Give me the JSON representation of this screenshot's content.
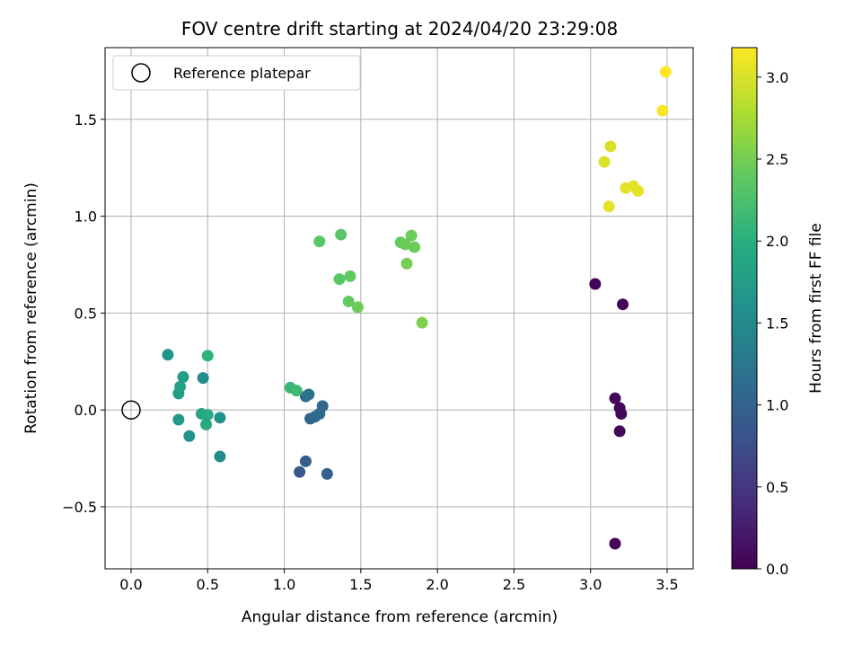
{
  "chart_data": {
    "type": "scatter",
    "title": "FOV centre drift starting at 2024/04/20 23:29:08",
    "xlabel": "Angular distance from reference (arcmin)",
    "ylabel": "Rotation from reference (arcmin)",
    "xlim": [
      -0.17,
      3.67
    ],
    "ylim": [
      -0.82,
      1.87
    ],
    "xticks": [
      0.0,
      0.5,
      1.0,
      1.5,
      2.0,
      2.5,
      3.0,
      3.5
    ],
    "xtick_labels": [
      "0.0",
      "0.5",
      "1.0",
      "1.5",
      "2.0",
      "2.5",
      "3.0",
      "3.5"
    ],
    "yticks": [
      -0.5,
      0.0,
      0.5,
      1.0,
      1.5
    ],
    "ytick_labels": [
      "−0.5",
      "0.0",
      "0.5",
      "1.0",
      "1.5"
    ],
    "grid": true,
    "legend": {
      "position": "top-left",
      "entries": [
        "Reference platepar"
      ]
    },
    "reference_point": {
      "name": "Reference platepar",
      "x": 0.0,
      "y": 0.0,
      "marker": "open-circle"
    },
    "colorbar": {
      "label": "Hours from first FF file",
      "colormap": "viridis",
      "range": [
        0.0,
        3.18
      ],
      "ticks": [
        0.0,
        0.5,
        1.0,
        1.5,
        2.0,
        2.5,
        3.0
      ],
      "tick_labels": [
        "0.0",
        "0.5",
        "1.0",
        "1.5",
        "2.0",
        "2.5",
        "3.0"
      ]
    },
    "points": [
      {
        "x": 3.03,
        "y": 0.65,
        "c": 0.03
      },
      {
        "x": 3.21,
        "y": 0.545,
        "c": 0.06
      },
      {
        "x": 3.16,
        "y": 0.06,
        "c": 0.05
      },
      {
        "x": 3.19,
        "y": 0.01,
        "c": 0.04
      },
      {
        "x": 3.2,
        "y": -0.02,
        "c": 0.08
      },
      {
        "x": 3.19,
        "y": -0.11,
        "c": 0.05
      },
      {
        "x": 3.16,
        "y": -0.69,
        "c": 0.02
      },
      {
        "x": 1.1,
        "y": -0.32,
        "c": 0.9
      },
      {
        "x": 1.14,
        "y": -0.265,
        "c": 0.95
      },
      {
        "x": 1.28,
        "y": -0.33,
        "c": 0.98
      },
      {
        "x": 1.17,
        "y": -0.045,
        "c": 1.0
      },
      {
        "x": 1.2,
        "y": -0.035,
        "c": 1.05
      },
      {
        "x": 1.23,
        "y": -0.02,
        "c": 1.1
      },
      {
        "x": 1.25,
        "y": 0.02,
        "c": 1.05
      },
      {
        "x": 1.14,
        "y": 0.07,
        "c": 1.15
      },
      {
        "x": 1.16,
        "y": 0.08,
        "c": 1.2
      },
      {
        "x": 0.58,
        "y": -0.24,
        "c": 1.55
      },
      {
        "x": 0.38,
        "y": -0.135,
        "c": 1.6
      },
      {
        "x": 0.31,
        "y": -0.05,
        "c": 1.7
      },
      {
        "x": 0.49,
        "y": -0.075,
        "c": 1.9
      },
      {
        "x": 0.46,
        "y": -0.02,
        "c": 1.85
      },
      {
        "x": 0.5,
        "y": -0.025,
        "c": 1.95
      },
      {
        "x": 0.58,
        "y": -0.04,
        "c": 1.6
      },
      {
        "x": 0.31,
        "y": 0.085,
        "c": 1.75
      },
      {
        "x": 0.32,
        "y": 0.12,
        "c": 1.8
      },
      {
        "x": 0.34,
        "y": 0.17,
        "c": 1.75
      },
      {
        "x": 0.47,
        "y": 0.165,
        "c": 1.55
      },
      {
        "x": 0.24,
        "y": 0.285,
        "c": 1.65
      },
      {
        "x": 0.5,
        "y": 0.28,
        "c": 2.05
      },
      {
        "x": 1.04,
        "y": 0.115,
        "c": 2.1
      },
      {
        "x": 1.08,
        "y": 0.1,
        "c": 2.15
      },
      {
        "x": 1.23,
        "y": 0.87,
        "c": 2.35
      },
      {
        "x": 1.37,
        "y": 0.905,
        "c": 2.35
      },
      {
        "x": 1.36,
        "y": 0.675,
        "c": 2.35
      },
      {
        "x": 1.43,
        "y": 0.69,
        "c": 2.4
      },
      {
        "x": 1.42,
        "y": 0.56,
        "c": 2.4
      },
      {
        "x": 1.48,
        "y": 0.53,
        "c": 2.45
      },
      {
        "x": 1.76,
        "y": 0.865,
        "c": 2.4
      },
      {
        "x": 1.79,
        "y": 0.855,
        "c": 2.45
      },
      {
        "x": 1.83,
        "y": 0.9,
        "c": 2.45
      },
      {
        "x": 1.85,
        "y": 0.84,
        "c": 2.45
      },
      {
        "x": 1.8,
        "y": 0.755,
        "c": 2.5
      },
      {
        "x": 1.9,
        "y": 0.45,
        "c": 2.55
      },
      {
        "x": 3.09,
        "y": 1.28,
        "c": 3.0
      },
      {
        "x": 3.13,
        "y": 1.36,
        "c": 3.0
      },
      {
        "x": 3.12,
        "y": 1.05,
        "c": 3.05
      },
      {
        "x": 3.23,
        "y": 1.145,
        "c": 3.05
      },
      {
        "x": 3.28,
        "y": 1.155,
        "c": 3.05
      },
      {
        "x": 3.31,
        "y": 1.13,
        "c": 3.05
      },
      {
        "x": 3.47,
        "y": 1.545,
        "c": 3.15
      },
      {
        "x": 3.49,
        "y": 1.745,
        "c": 3.18
      }
    ]
  }
}
